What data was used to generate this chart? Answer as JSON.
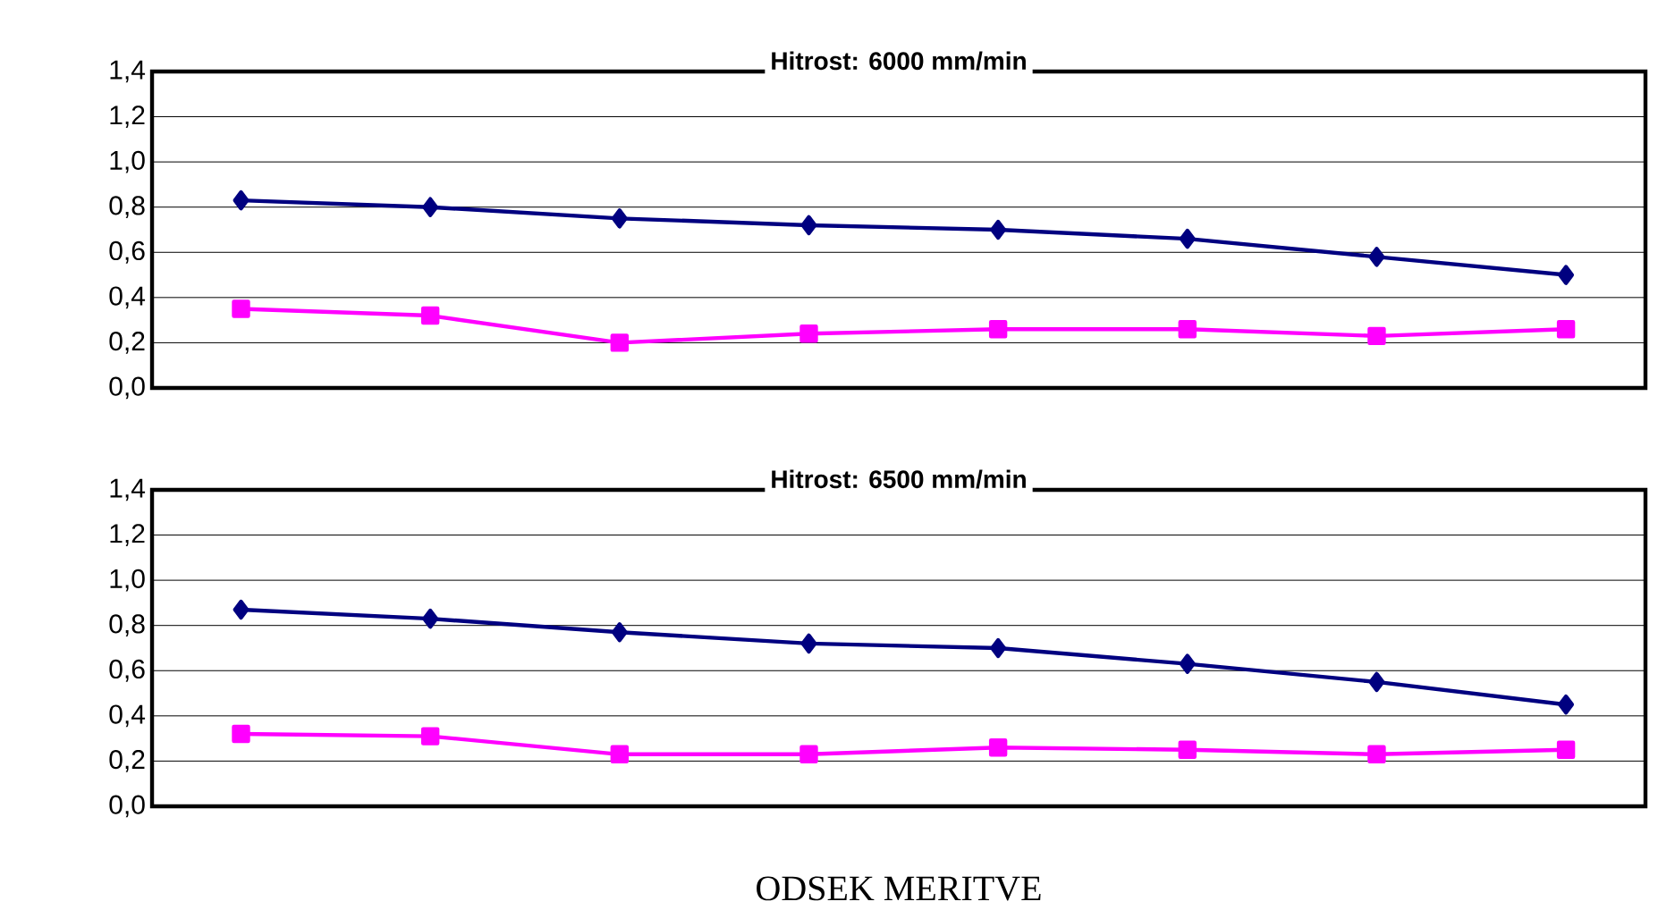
{
  "chart_data": [
    {
      "type": "line",
      "title": "Hitrost: 6000 mm/min",
      "categories": [
        null,
        null,
        null,
        null,
        null,
        null,
        null,
        null
      ],
      "series": [
        {
          "color": "#000080",
          "marker": "diamond",
          "values": [
            0.83,
            0.8,
            0.75,
            0.72,
            0.7,
            0.66,
            0.58,
            0.5
          ]
        },
        {
          "color": "#ff00ff",
          "marker": "square",
          "values": [
            0.35,
            0.32,
            0.2,
            0.24,
            0.26,
            0.26,
            0.23,
            0.26
          ]
        }
      ],
      "ylim": [
        0,
        1.4
      ],
      "yticks": [
        {
          "value": 0,
          "label": "0,0"
        },
        {
          "value": 0.2,
          "label": "0,2"
        },
        {
          "value": 0.4,
          "label": "0,4"
        },
        {
          "value": 0.6,
          "label": "0,6"
        },
        {
          "value": 0.8,
          "label": "0,8"
        },
        {
          "value": 1.0,
          "label": "1,0"
        },
        {
          "value": 1.2,
          "label": "1,2"
        },
        {
          "value": 1.4,
          "label": "1,4"
        }
      ],
      "grid": "y",
      "tick_labels": "y"
    },
    {
      "type": "line",
      "title": "Hitrost: 6500 mm/min",
      "xlabel": "ODSEK MERITVE",
      "categories": [
        null,
        null,
        null,
        null,
        null,
        null,
        null,
        null
      ],
      "series": [
        {
          "color": "#000080",
          "marker": "diamond",
          "values": [
            0.87,
            0.83,
            0.77,
            0.72,
            0.7,
            0.63,
            0.55,
            0.45
          ]
        },
        {
          "color": "#ff00ff",
          "marker": "square",
          "values": [
            0.32,
            0.31,
            0.23,
            0.23,
            0.26,
            0.25,
            0.23,
            0.25
          ]
        }
      ],
      "ylim": [
        0,
        1.4
      ],
      "yticks": [
        {
          "value": 0,
          "label": "0,0"
        },
        {
          "value": 0.2,
          "label": "0,2"
        },
        {
          "value": 0.4,
          "label": "0,4"
        },
        {
          "value": 0.6,
          "label": "0,6"
        },
        {
          "value": 0.8,
          "label": "0,8"
        },
        {
          "value": 1.0,
          "label": "1,0"
        },
        {
          "value": 1.2,
          "label": "1,2"
        },
        {
          "value": 1.4,
          "label": "1,4"
        }
      ],
      "grid": "y",
      "tick_labels": "y"
    }
  ]
}
